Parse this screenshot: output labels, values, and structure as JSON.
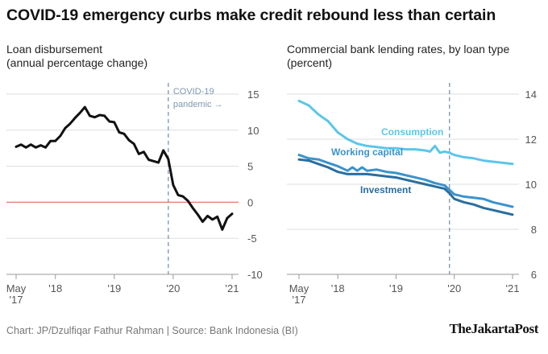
{
  "title": "COVID-19 emergency curbs make credit rebound less than certain",
  "footer": "Chart: JP/Dzulfiqar Fathur Rahman | Source: Bank Indonesia (BI)",
  "brand": "TheJakartaPost",
  "colors": {
    "loan_line": "#111111",
    "zero_line": "#e07b6a",
    "consumption": "#5cc6e8",
    "working_capital": "#3a93cc",
    "investment": "#2a6e9e",
    "grid": "#dddddd",
    "pandemic_marker": "#7d93a8"
  },
  "chart_data": [
    {
      "type": "line",
      "title": "Loan disbursement",
      "subtitle": "(annual percentage change)",
      "x_tick_labels": [
        "May '17",
        "'18",
        "'19",
        "'20",
        "'21"
      ],
      "x_ticks": [
        2017.333,
        2018.0,
        2019.0,
        2020.0,
        2021.0
      ],
      "xlim": [
        2017.333,
        2021.0
      ],
      "ylim": [
        -10,
        15
      ],
      "yticks": [
        -10,
        -5,
        0,
        5,
        10,
        15
      ],
      "ytick_labels": [
        "-10",
        "-5",
        "0",
        "5",
        "10",
        "15"
      ],
      "grid": true,
      "reference_line": 0,
      "annotation": {
        "x": 2019.917,
        "lines": [
          "COVID-19",
          "pandemic →"
        ]
      },
      "series": [
        {
          "x": [
            2017.333,
            2017.417,
            2017.5,
            2017.583,
            2017.667,
            2017.75,
            2017.833,
            2017.917,
            2018.0,
            2018.083,
            2018.167,
            2018.25,
            2018.333,
            2018.417,
            2018.5,
            2018.583,
            2018.667,
            2018.75,
            2018.833,
            2018.917,
            2019.0,
            2019.083,
            2019.167,
            2019.25,
            2019.333,
            2019.417,
            2019.5,
            2019.583,
            2019.667,
            2019.75,
            2019.833,
            2019.917,
            2020.0,
            2020.083,
            2020.167,
            2020.25,
            2020.333,
            2020.417,
            2020.5,
            2020.583,
            2020.667,
            2020.75,
            2020.833,
            2020.917,
            2021.0
          ],
          "values": [
            7.7,
            8.0,
            7.6,
            8.0,
            7.6,
            7.9,
            7.6,
            8.5,
            8.5,
            9.2,
            10.3,
            10.9,
            11.7,
            12.4,
            13.2,
            12.0,
            11.8,
            12.1,
            12.0,
            11.2,
            11.1,
            9.7,
            9.5,
            8.6,
            8.1,
            6.7,
            7.0,
            5.9,
            5.7,
            5.5,
            7.2,
            6.0,
            2.4,
            1.0,
            0.8,
            0.2,
            -0.8,
            -1.7,
            -2.7,
            -1.9,
            -2.4,
            -2.0,
            -3.8,
            -2.2,
            -1.6
          ]
        }
      ]
    },
    {
      "type": "line",
      "title": "Commercial bank lending rates, by loan type",
      "subtitle": "(percent)",
      "x_tick_labels": [
        "May '17",
        "'18",
        "'19",
        "'20",
        "'21"
      ],
      "x_ticks": [
        2017.333,
        2018.0,
        2019.0,
        2020.0,
        2021.0
      ],
      "xlim": [
        2017.333,
        2021.0
      ],
      "ylim": [
        6,
        14
      ],
      "yticks": [
        6,
        8,
        10,
        12,
        14
      ],
      "ytick_labels": [
        "6",
        "8",
        "10",
        "12",
        "14"
      ],
      "grid": true,
      "annotation": {
        "x": 2019.917
      },
      "series": [
        {
          "name": "Consumption",
          "x": [
            2017.333,
            2017.5,
            2017.667,
            2017.833,
            2018.0,
            2018.167,
            2018.333,
            2018.5,
            2018.667,
            2018.833,
            2019.0,
            2019.167,
            2019.333,
            2019.5,
            2019.583,
            2019.667,
            2019.75,
            2019.833,
            2019.917,
            2020.0,
            2020.167,
            2020.333,
            2020.5,
            2020.667,
            2020.833,
            2021.0
          ],
          "values": [
            13.7,
            13.5,
            13.1,
            12.8,
            12.3,
            12.0,
            11.8,
            11.7,
            11.65,
            11.6,
            11.6,
            11.55,
            11.55,
            11.5,
            11.45,
            11.7,
            11.4,
            11.45,
            11.4,
            11.3,
            11.2,
            11.15,
            11.05,
            11.0,
            10.95,
            10.9
          ]
        },
        {
          "name": "Working capital",
          "x": [
            2017.333,
            2017.5,
            2017.667,
            2017.833,
            2018.0,
            2018.167,
            2018.25,
            2018.333,
            2018.417,
            2018.5,
            2018.667,
            2018.833,
            2019.0,
            2019.167,
            2019.333,
            2019.5,
            2019.667,
            2019.833,
            2019.917,
            2020.0,
            2020.167,
            2020.333,
            2020.5,
            2020.667,
            2020.833,
            2021.0
          ],
          "values": [
            11.3,
            11.15,
            11.1,
            10.95,
            10.8,
            10.6,
            10.75,
            10.6,
            10.75,
            10.6,
            10.65,
            10.55,
            10.5,
            10.4,
            10.3,
            10.2,
            10.05,
            9.95,
            9.75,
            9.55,
            9.45,
            9.4,
            9.35,
            9.2,
            9.1,
            9.0
          ]
        },
        {
          "name": "Investment",
          "x": [
            2017.333,
            2017.5,
            2017.667,
            2017.833,
            2018.0,
            2018.167,
            2018.333,
            2018.5,
            2018.667,
            2018.833,
            2019.0,
            2019.167,
            2019.333,
            2019.5,
            2019.667,
            2019.833,
            2019.917,
            2020.0,
            2020.167,
            2020.333,
            2020.5,
            2020.667,
            2020.833,
            2021.0
          ],
          "values": [
            11.1,
            11.05,
            10.9,
            10.75,
            10.55,
            10.45,
            10.45,
            10.45,
            10.4,
            10.35,
            10.3,
            10.2,
            10.1,
            10.0,
            9.9,
            9.8,
            9.6,
            9.35,
            9.2,
            9.1,
            8.95,
            8.85,
            8.75,
            8.65
          ]
        }
      ]
    }
  ]
}
